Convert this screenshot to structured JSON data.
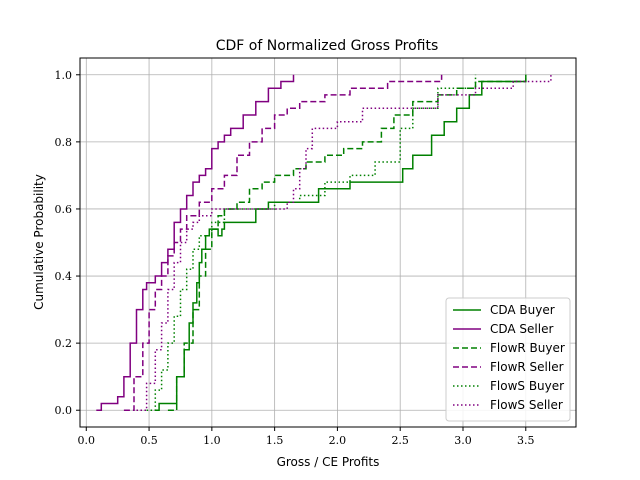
{
  "chart_data": {
    "type": "line",
    "title": "CDF of Normalized Gross Profits",
    "xlabel": "Gross / CE Profits",
    "ylabel": "Cumulative Probability",
    "xlim": [
      -0.05,
      3.9
    ],
    "ylim": [
      -0.05,
      1.05
    ],
    "xticks": [
      0.0,
      0.5,
      1.0,
      1.5,
      2.0,
      2.5,
      3.0,
      3.5
    ],
    "xtick_labels": [
      "0.0",
      "0.5",
      "1.0",
      "1.5",
      "2.0",
      "2.5",
      "3.0",
      "3.5"
    ],
    "yticks": [
      0.0,
      0.2,
      0.4,
      0.6,
      0.8,
      1.0
    ],
    "ytick_labels": [
      "0.0",
      "0.2",
      "0.4",
      "0.6",
      "0.8",
      "1.0"
    ],
    "grid": true,
    "legend_position": "lower-right",
    "series": [
      {
        "name": "CDA Buyer",
        "color": "#008000",
        "style": "solid",
        "x": [
          0.55,
          0.58,
          0.7,
          0.72,
          0.78,
          0.82,
          0.85,
          0.88,
          0.9,
          0.92,
          0.95,
          0.98,
          1.0,
          1.05,
          1.08,
          1.1,
          1.15,
          1.2,
          1.35,
          1.45,
          1.7,
          1.85,
          2.1,
          2.4,
          2.52,
          2.6,
          2.75,
          2.85,
          2.95,
          3.05,
          3.15,
          3.5
        ],
        "y": [
          0.0,
          0.02,
          0.02,
          0.1,
          0.18,
          0.26,
          0.32,
          0.38,
          0.44,
          0.48,
          0.52,
          0.54,
          0.54,
          0.52,
          0.54,
          0.56,
          0.56,
          0.56,
          0.6,
          0.62,
          0.62,
          0.66,
          0.68,
          0.68,
          0.72,
          0.76,
          0.82,
          0.86,
          0.9,
          0.94,
          0.98,
          1.0
        ]
      },
      {
        "name": "CDA Seller",
        "color": "#800080",
        "style": "solid",
        "x": [
          0.08,
          0.12,
          0.2,
          0.25,
          0.3,
          0.35,
          0.4,
          0.45,
          0.48,
          0.55,
          0.6,
          0.65,
          0.7,
          0.75,
          0.8,
          0.85,
          0.9,
          0.95,
          1.0,
          1.05,
          1.1,
          1.15,
          1.25,
          1.35,
          1.45,
          1.55,
          1.65
        ],
        "y": [
          0.0,
          0.02,
          0.02,
          0.04,
          0.1,
          0.2,
          0.3,
          0.36,
          0.38,
          0.4,
          0.44,
          0.48,
          0.56,
          0.6,
          0.64,
          0.68,
          0.7,
          0.72,
          0.78,
          0.8,
          0.82,
          0.84,
          0.88,
          0.92,
          0.96,
          0.98,
          1.0
        ]
      },
      {
        "name": "FlowR Buyer",
        "color": "#008000",
        "style": "dashed",
        "x": [
          0.65,
          0.72,
          0.78,
          0.85,
          0.9,
          0.95,
          1.0,
          1.05,
          1.1,
          1.2,
          1.3,
          1.4,
          1.5,
          1.65,
          1.75,
          1.9,
          2.05,
          2.2,
          2.35,
          2.45,
          2.6,
          2.8,
          2.95,
          3.1,
          3.3,
          3.5
        ],
        "y": [
          0.0,
          0.1,
          0.2,
          0.3,
          0.4,
          0.48,
          0.54,
          0.58,
          0.6,
          0.62,
          0.66,
          0.68,
          0.7,
          0.72,
          0.74,
          0.76,
          0.78,
          0.8,
          0.84,
          0.88,
          0.92,
          0.94,
          0.96,
          0.98,
          0.98,
          1.0
        ]
      },
      {
        "name": "FlowR Seller",
        "color": "#800080",
        "style": "dashed",
        "x": [
          0.3,
          0.38,
          0.45,
          0.5,
          0.55,
          0.6,
          0.65,
          0.7,
          0.75,
          0.8,
          0.9,
          1.0,
          1.1,
          1.2,
          1.3,
          1.4,
          1.5,
          1.6,
          1.7,
          1.9,
          2.1,
          2.4,
          2.6,
          2.83
        ],
        "y": [
          0.0,
          0.1,
          0.2,
          0.3,
          0.36,
          0.4,
          0.46,
          0.5,
          0.54,
          0.58,
          0.62,
          0.66,
          0.7,
          0.76,
          0.8,
          0.84,
          0.88,
          0.9,
          0.92,
          0.94,
          0.96,
          0.98,
          0.98,
          1.0
        ]
      },
      {
        "name": "FlowS Buyer",
        "color": "#008000",
        "style": "dotted",
        "x": [
          0.48,
          0.55,
          0.6,
          0.65,
          0.7,
          0.75,
          0.8,
          0.85,
          0.9,
          1.0,
          1.1,
          1.3,
          1.5,
          1.7,
          1.9,
          2.1,
          2.3,
          2.5,
          2.6,
          2.8,
          3.1
        ],
        "y": [
          0.0,
          0.06,
          0.12,
          0.2,
          0.28,
          0.36,
          0.42,
          0.48,
          0.52,
          0.56,
          0.6,
          0.6,
          0.62,
          0.64,
          0.68,
          0.7,
          0.74,
          0.84,
          0.9,
          0.96,
          1.0
        ]
      },
      {
        "name": "FlowS Seller",
        "color": "#800080",
        "style": "dotted",
        "x": [
          0.4,
          0.48,
          0.55,
          0.6,
          0.65,
          0.7,
          0.75,
          0.8,
          0.85,
          0.9,
          1.0,
          1.1,
          1.3,
          1.5,
          1.6,
          1.65,
          1.7,
          1.75,
          1.8,
          2.0,
          2.2,
          2.5,
          2.8,
          3.1,
          3.4,
          3.7
        ],
        "y": [
          0.0,
          0.08,
          0.18,
          0.26,
          0.36,
          0.44,
          0.5,
          0.54,
          0.56,
          0.58,
          0.6,
          0.6,
          0.6,
          0.6,
          0.62,
          0.66,
          0.72,
          0.78,
          0.84,
          0.86,
          0.9,
          0.9,
          0.94,
          0.96,
          0.98,
          1.0
        ]
      }
    ]
  }
}
